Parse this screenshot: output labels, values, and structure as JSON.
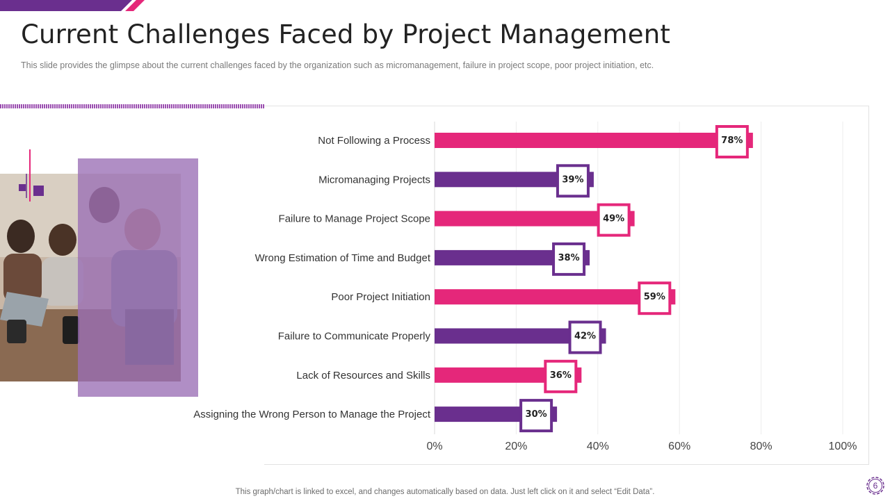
{
  "slide": {
    "title": "Current Challenges Faced by Project Management",
    "subtitle": "This slide provides  the glimpse about the current challenges faced by the organization  such as micromanagement,  failure  in project scope,  poor project  initiation, etc.",
    "footer_note": "This graph/chart is linked to excel,  and changes automatically based on data. Just left click on it and select “Edit Data”.",
    "page_number": "6"
  },
  "colors": {
    "magenta": "#e5277a",
    "purple": "#6a2f8e",
    "photo_overlay": "#9a6eb5",
    "gridline": "#ececec"
  },
  "photo": {
    "icon": "team-meeting-photo"
  },
  "chart_data": {
    "type": "bar",
    "orientation": "horizontal",
    "categories": [
      "Not Following a Process",
      "Micromanaging Projects",
      "Failure to Manage Project Scope",
      "Wrong Estimation of Time and Budget",
      "Poor Project Initiation",
      "Failure to Communicate Properly",
      "Lack of Resources and Skills",
      "Assigning the Wrong Person to Manage the Project"
    ],
    "values": [
      78,
      39,
      49,
      38,
      59,
      42,
      36,
      30
    ],
    "data_labels": [
      "78%",
      "39%",
      "49%",
      "38%",
      "59%",
      "42%",
      "36%",
      "30%"
    ],
    "bar_colors": [
      "magenta",
      "purple",
      "magenta",
      "purple",
      "magenta",
      "purple",
      "magenta",
      "purple"
    ],
    "xlim": [
      0,
      100
    ],
    "x_ticks": [
      0,
      20,
      40,
      60,
      80,
      100
    ],
    "x_tick_labels": [
      "0%",
      "20%",
      "40%",
      "60%",
      "80%",
      "100%"
    ],
    "title": "",
    "xlabel": "",
    "ylabel": "",
    "grid": true,
    "legend": "none"
  }
}
